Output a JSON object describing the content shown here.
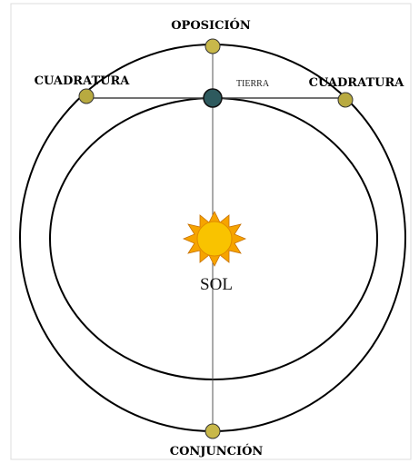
{
  "labels": {
    "opposition": "OPOSICIÓN",
    "quadrature_left": "CUADRATURA",
    "quadrature_right": "CUADRATURA",
    "earth": "TIERRA",
    "sun": "SOL",
    "conjunction": "CONJUNCIÓN"
  }
}
